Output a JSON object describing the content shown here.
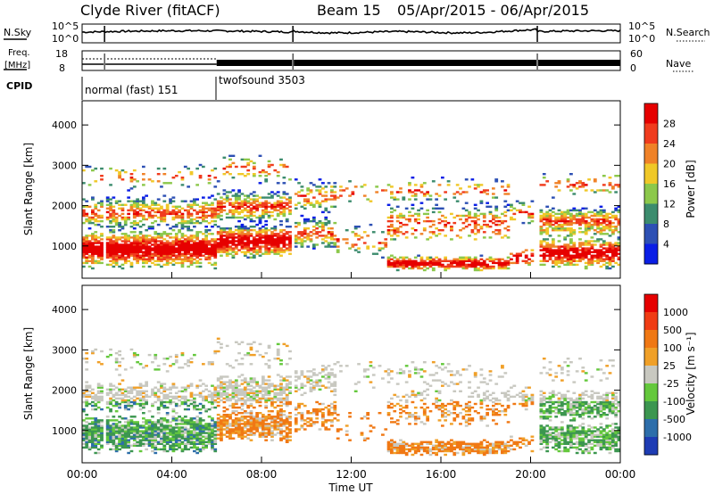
{
  "header": {
    "station": "Clyde River (fitACF)",
    "beam": "Beam 15",
    "date_range": "05/Apr/2015 - 06/Apr/2015"
  },
  "side_labels": {
    "nsky": "N.Sky",
    "nsearch": "N.Search",
    "freq": "Freq.",
    "mhz": "[MHz]",
    "nave": "Nave",
    "cpid": "CPID"
  },
  "cpid_segments": [
    {
      "label": "normal (fast) 151",
      "start_hour": 0,
      "end_hour": 6
    },
    {
      "label": "twofsound 3503",
      "start_hour": 6,
      "end_hour": 24
    }
  ],
  "chart_data": [
    {
      "type": "line",
      "name": "noise_panel",
      "left_ticks": [
        "10^5",
        "10^0"
      ],
      "right_ticks": [
        "10^5",
        "10^0"
      ],
      "x_range_hours": [
        0,
        24
      ],
      "gaps_hours": [
        1.0,
        9.4,
        20.3
      ]
    },
    {
      "type": "line",
      "name": "freq_nave_panel",
      "left_ticks": [
        "18",
        "8"
      ],
      "right_ticks": [
        "60",
        "0"
      ],
      "x_range_hours": [
        0,
        24
      ],
      "mode_change_hour": 6.0
    },
    {
      "type": "heatmap",
      "name": "power_panel",
      "ylabel": "Slant Range [km]",
      "y_ticks": [
        "1000",
        "2000",
        "3000",
        "4000"
      ],
      "ylim": [
        200,
        4600
      ],
      "xlim_hours": [
        0,
        24
      ],
      "colorbar": {
        "label": "Power [dB]",
        "ticks": [
          "4",
          "8",
          "12",
          "16",
          "20",
          "24",
          "28"
        ],
        "colors": [
          "#0a1ee6",
          "#2d50b4",
          "#3c8c6e",
          "#8cc84b",
          "#f0c828",
          "#f08228",
          "#f03c1e",
          "#e60000"
        ]
      }
    },
    {
      "type": "heatmap",
      "name": "velocity_panel",
      "ylabel": "Slant Range [km]",
      "y_ticks": [
        "1000",
        "2000",
        "3000",
        "4000"
      ],
      "ylim": [
        200,
        4600
      ],
      "xlim_hours": [
        0,
        24
      ],
      "xlabel": "Time UT",
      "x_ticks": [
        "00:00",
        "04:00",
        "08:00",
        "12:00",
        "16:00",
        "20:00",
        "00:00"
      ],
      "colorbar": {
        "label": "Velocity [m s⁻¹]",
        "ticks": [
          "1000",
          "500",
          "100",
          "25",
          "-25",
          "-100",
          "-500",
          "-1000"
        ],
        "colors": [
          "#1e3cb4",
          "#2d6eaa",
          "#3c9650",
          "#64c83c",
          "#c8c8c0",
          "#f0a028",
          "#f07814",
          "#f03c14",
          "#e60000"
        ]
      }
    }
  ]
}
